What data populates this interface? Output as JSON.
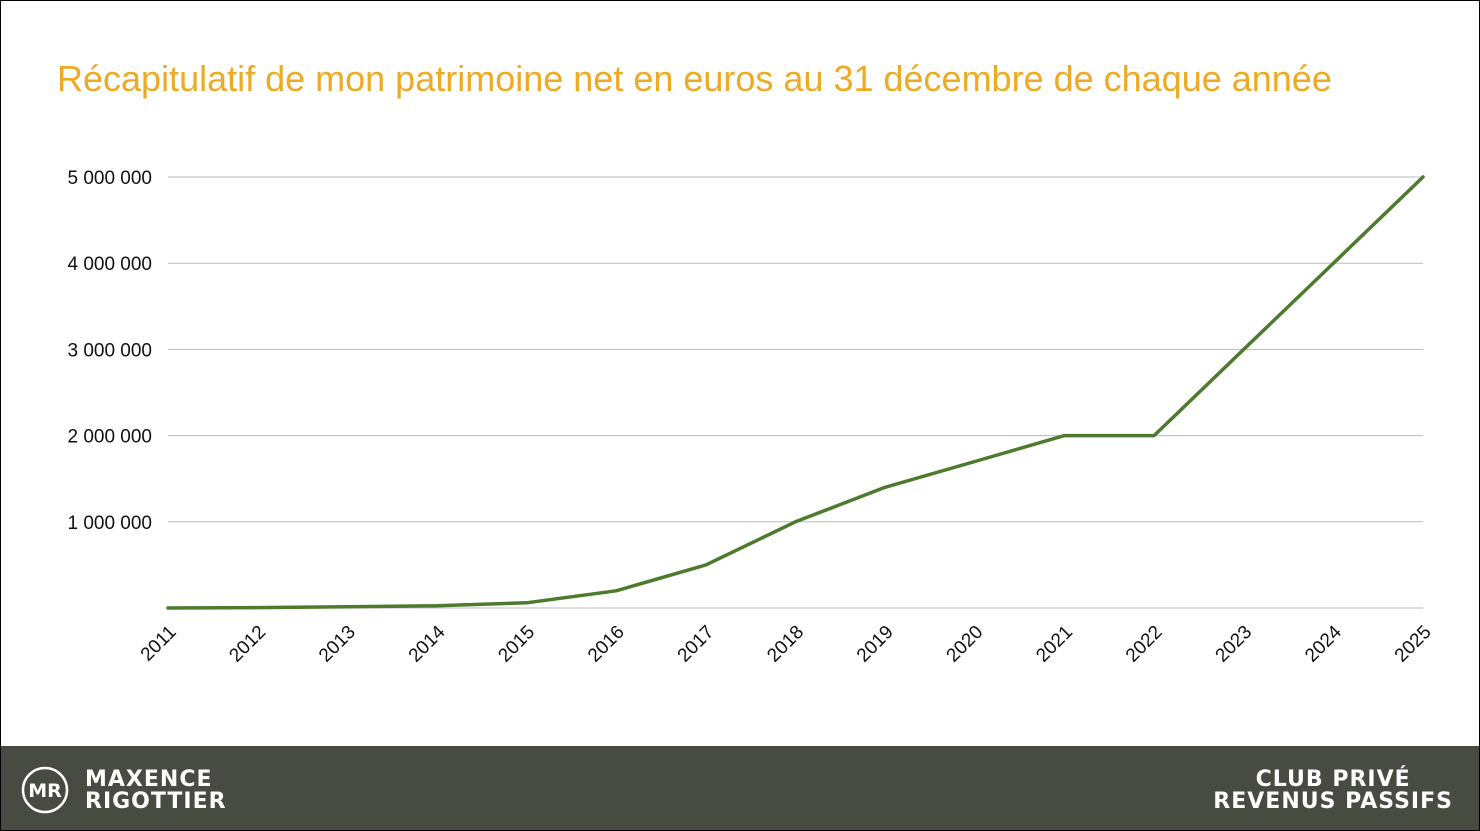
{
  "title": "Récapitulatif de mon patrimoine net en euros au 31 décembre de chaque année",
  "colors": {
    "title": "#eeaa22",
    "line": "#4d7a2c",
    "grid": "#bbbbbb",
    "footer": "#474b41"
  },
  "chart_data": {
    "type": "line",
    "title": "Récapitulatif de mon patrimoine net en euros au 31 décembre de chaque année",
    "xlabel": "",
    "ylabel": "",
    "categories": [
      "2011",
      "2012",
      "2013",
      "2014",
      "2015",
      "2016",
      "2017",
      "2018",
      "2019",
      "2020",
      "2021",
      "2022",
      "2023",
      "2024",
      "2025"
    ],
    "series": [
      {
        "name": "Patrimoine net",
        "values": [
          0,
          5000,
          15000,
          25000,
          60000,
          200000,
          500000,
          1000000,
          1400000,
          1700000,
          2000000,
          2000000,
          3000000,
          4000000,
          5000000
        ]
      }
    ],
    "ylim": [
      0,
      5000000
    ],
    "yticks": [
      1000000,
      2000000,
      3000000,
      4000000,
      5000000
    ],
    "ytick_labels": [
      "1 000 000",
      "2 000 000",
      "3 000 000",
      "4 000 000",
      "5 000 000"
    ],
    "grid": true,
    "legend": "none"
  },
  "footer": {
    "logo_letters": "MR",
    "brand_line1": "MAXENCE",
    "brand_line2": "RIGOTTIER",
    "club_line1": "CLUB PRIVÉ",
    "club_line2": "REVENUS PASSIFS"
  }
}
